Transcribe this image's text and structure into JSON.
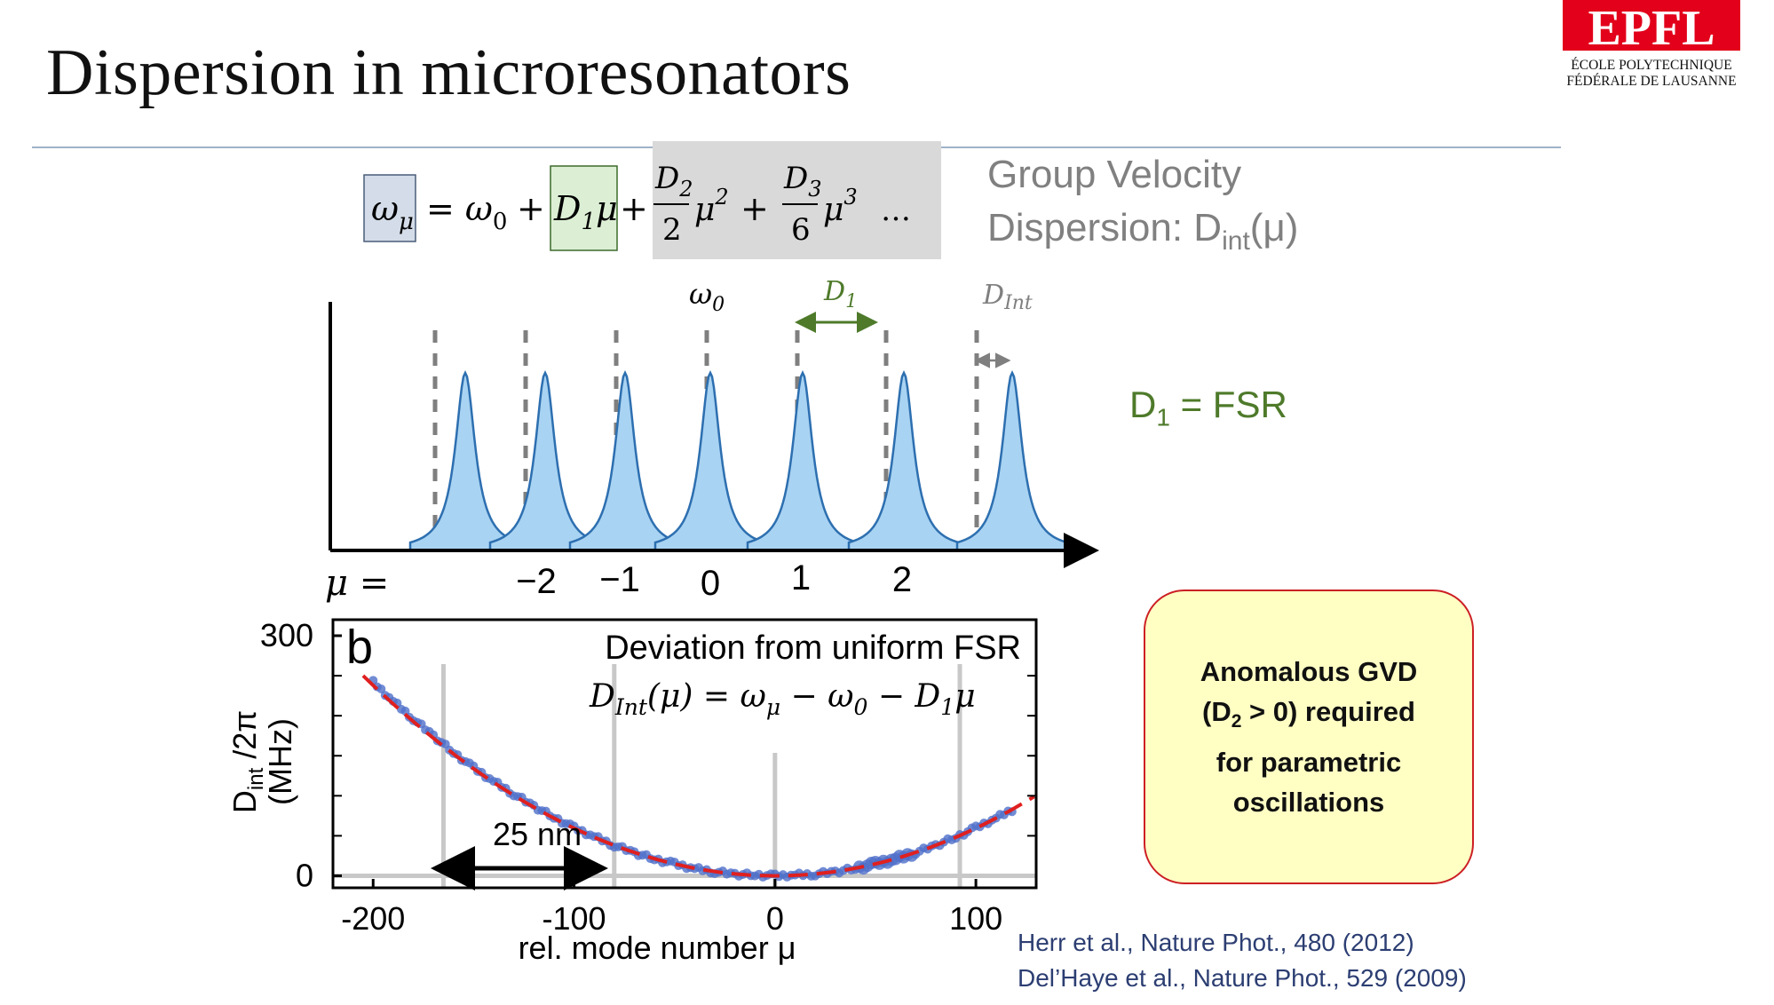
{
  "slide_title": "Dispersion in microresonators",
  "logo": {
    "line1": "ÉCOLE POLYTECHNIQUE",
    "line2": "FÉDÉRALE DE LAUSANNE",
    "mark": "EPFL",
    "colors": {
      "red": "#e2001a"
    }
  },
  "equation": {
    "lhs": "ω",
    "lhs_sub": "μ",
    "eq": "= ω",
    "omega0_sub": "0",
    "plus": "+",
    "d1": "D",
    "d1_sub": "1",
    "mu": "μ",
    "d2": "D",
    "d2_sub": "2",
    "den2": "2",
    "mu_sq": "μ",
    "sq": "2",
    "d3": "D",
    "d3_sub": "3",
    "den6": "6",
    "mu_cube": "μ",
    "cube": "3",
    "ellipsis": "…"
  },
  "group_velocity": {
    "line1": "Group Velocity",
    "line2_prefix": "Dispersion: D",
    "line2_sub": "int",
    "line2_suffix": "(μ)"
  },
  "comb_diagram": {
    "omega0_label": "ω",
    "omega0_sub": "0",
    "d1_label": "D",
    "d1_sub": "1",
    "dint_label": "D",
    "dint_sub": "Int",
    "mu_prefix": "μ =",
    "mode_labels": [
      "−2",
      "−1",
      "0",
      "1",
      "2"
    ],
    "colors": {
      "peak_fill": "#a9d3f2",
      "peak_stroke": "#2d6fb0",
      "d1_arrow": "#4e7a2a",
      "dashes": "#7f7f7f"
    }
  },
  "d1_fsr": {
    "prefix": "D",
    "sub": "1",
    "suffix": " = FSR"
  },
  "chart_data": {
    "type": "scatter",
    "panel_letter": "b",
    "title": "Deviation from uniform FSR",
    "formula": {
      "lhs": "D",
      "lhs_sub": "Int",
      "arg": "(μ) = ω",
      "sub_mu": "μ",
      "minus_omega": " − ω",
      "sub0": "0",
      "minus_d": " − D",
      "sub1": "1",
      "mu_end": "μ"
    },
    "xlabel": "rel. mode number μ",
    "ylabel_main": "D",
    "ylabel_sub": "int",
    "ylabel_rest": " /2π",
    "ylabel_unit": "(MHz)",
    "xlim": [
      -220,
      130
    ],
    "ylim": [
      -15,
      320
    ],
    "x_ticks": [
      "-200",
      "-100",
      "0",
      "100"
    ],
    "y_ticks": [
      "300",
      "0"
    ],
    "annotation": "25 nm",
    "fit_coeff": 0.00595,
    "series": [
      {
        "name": "measured",
        "x": [
          -200,
          -190,
          -180,
          -170,
          -160,
          -150,
          -140,
          -130,
          -120,
          -110,
          -100,
          -90,
          -80,
          -70,
          -60,
          -50,
          -40,
          -30,
          -20,
          -10,
          0,
          10,
          20,
          30,
          40,
          50,
          60,
          70,
          80,
          90,
          100,
          110,
          120
        ],
        "y": [
          242,
          218,
          196,
          175,
          154,
          135,
          118,
          102,
          87,
          73,
          60,
          49,
          38,
          29,
          21,
          15,
          9,
          5,
          2,
          1,
          0,
          1,
          2,
          5,
          9,
          15,
          21,
          29,
          38,
          48,
          60,
          72,
          85
        ]
      },
      {
        "name": "fit",
        "x": [
          -205,
          -180,
          -150,
          -120,
          -90,
          -60,
          -30,
          0,
          30,
          60,
          90,
          120,
          130
        ],
        "y": [
          250,
          193,
          134,
          86,
          48,
          21,
          5,
          0,
          5,
          21,
          48,
          86,
          101
        ]
      }
    ],
    "colors": {
      "points": "#4f6fc9",
      "fit": "#e0201f",
      "grid": "#c8c8c8"
    }
  },
  "callout": {
    "line1": "Anomalous GVD",
    "line2_prefix": "(D",
    "line2_sub": "2",
    "line2_suffix": " > 0) required",
    "line3": "for parametric",
    "line4": "oscillations"
  },
  "references": [
    "Herr et al., Nature Phot., 480 (2012)",
    "Del’Haye et al., Nature Phot., 529 (2009)"
  ]
}
